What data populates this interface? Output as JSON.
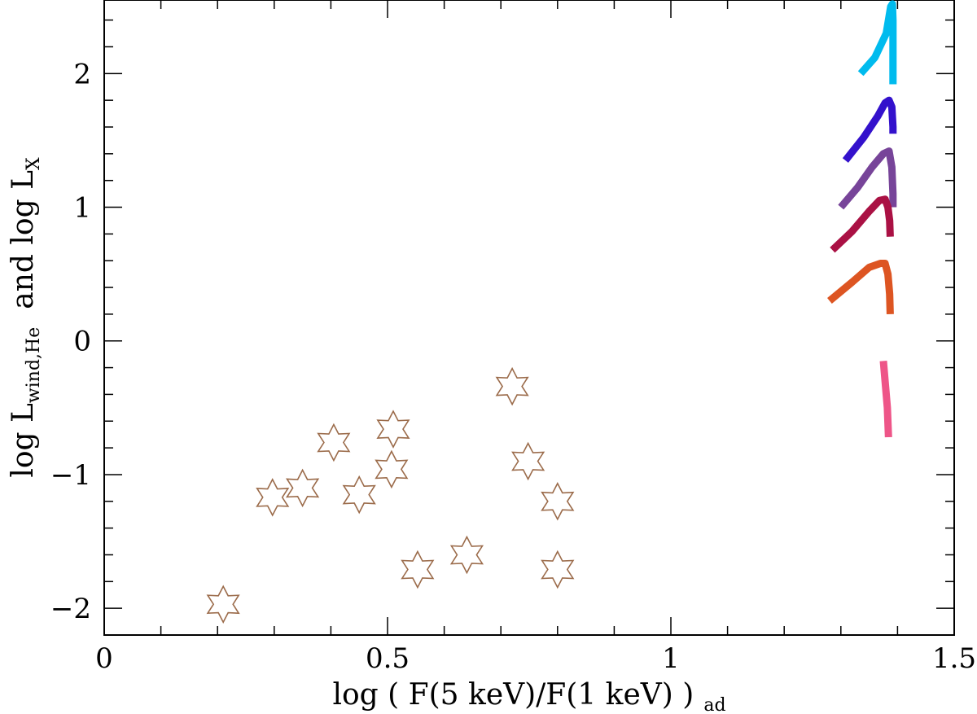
{
  "chart_data": {
    "type": "scatter",
    "title": "",
    "xlabel": "log ( F(5 keV)/F(1 keV) )",
    "xlabel_subscript": "ad",
    "ylabel_parts": {
      "log1": "log L",
      "sub1": "wind,He",
      "mid": "and log L",
      "sub2": "X"
    },
    "xlim": [
      0,
      1.5
    ],
    "ylim": [
      -2.2,
      2.55
    ],
    "x_ticks": [
      {
        "value": 0,
        "label": "0"
      },
      {
        "value": 0.5,
        "label": "0.5"
      },
      {
        "value": 1,
        "label": "1"
      },
      {
        "value": 1.5,
        "label": "1.5"
      }
    ],
    "y_ticks": [
      {
        "value": -2,
        "label": "−2"
      },
      {
        "value": -1,
        "label": "−1"
      },
      {
        "value": 0,
        "label": "0"
      },
      {
        "value": 1,
        "label": "1"
      },
      {
        "value": 2,
        "label": "2"
      }
    ],
    "x_minor_step": 0.1,
    "y_minor_step": 0.2,
    "grid": false,
    "star_color": "#9b6b4a",
    "stars": [
      {
        "x": 0.21,
        "y": -1.97
      },
      {
        "x": 0.297,
        "y": -1.17
      },
      {
        "x": 0.35,
        "y": -1.1
      },
      {
        "x": 0.405,
        "y": -0.76
      },
      {
        "x": 0.45,
        "y": -1.15
      },
      {
        "x": 0.51,
        "y": -0.66
      },
      {
        "x": 0.507,
        "y": -0.96
      },
      {
        "x": 0.553,
        "y": -1.71
      },
      {
        "x": 0.64,
        "y": -1.6
      },
      {
        "x": 0.72,
        "y": -0.34
      },
      {
        "x": 0.748,
        "y": -0.9
      },
      {
        "x": 0.8,
        "y": -1.2
      },
      {
        "x": 0.8,
        "y": -1.71
      }
    ],
    "series": [
      {
        "color": "#00bbee",
        "points": [
          [
            1.335,
            2.0
          ],
          [
            1.36,
            2.12
          ],
          [
            1.38,
            2.3
          ],
          [
            1.388,
            2.5
          ],
          [
            1.391,
            2.52
          ],
          [
            1.392,
            2.4
          ],
          [
            1.392,
            2.2
          ],
          [
            1.392,
            1.92
          ]
        ]
      },
      {
        "color": "#3311cc",
        "points": [
          [
            1.308,
            1.35
          ],
          [
            1.34,
            1.52
          ],
          [
            1.365,
            1.68
          ],
          [
            1.378,
            1.78
          ],
          [
            1.385,
            1.8
          ],
          [
            1.39,
            1.75
          ],
          [
            1.392,
            1.6
          ],
          [
            1.392,
            1.55
          ]
        ]
      },
      {
        "color": "#774499",
        "points": [
          [
            1.3,
            1.0
          ],
          [
            1.33,
            1.15
          ],
          [
            1.355,
            1.3
          ],
          [
            1.375,
            1.4
          ],
          [
            1.385,
            1.42
          ],
          [
            1.39,
            1.3
          ],
          [
            1.392,
            1.1
          ],
          [
            1.392,
            1.0
          ]
        ]
      },
      {
        "color": "#aa1144",
        "points": [
          [
            1.285,
            0.68
          ],
          [
            1.32,
            0.82
          ],
          [
            1.35,
            0.97
          ],
          [
            1.368,
            1.05
          ],
          [
            1.378,
            1.06
          ],
          [
            1.383,
            1.0
          ],
          [
            1.386,
            0.9
          ],
          [
            1.387,
            0.78
          ]
        ]
      },
      {
        "color": "#dd5522",
        "points": [
          [
            1.28,
            0.3
          ],
          [
            1.32,
            0.44
          ],
          [
            1.35,
            0.55
          ],
          [
            1.37,
            0.58
          ],
          [
            1.378,
            0.58
          ],
          [
            1.383,
            0.5
          ],
          [
            1.386,
            0.35
          ],
          [
            1.387,
            0.2
          ]
        ]
      },
      {
        "color": "#ee5588",
        "points": [
          [
            1.375,
            -0.15
          ],
          [
            1.378,
            -0.3
          ],
          [
            1.382,
            -0.5
          ],
          [
            1.384,
            -0.72
          ]
        ]
      }
    ]
  }
}
